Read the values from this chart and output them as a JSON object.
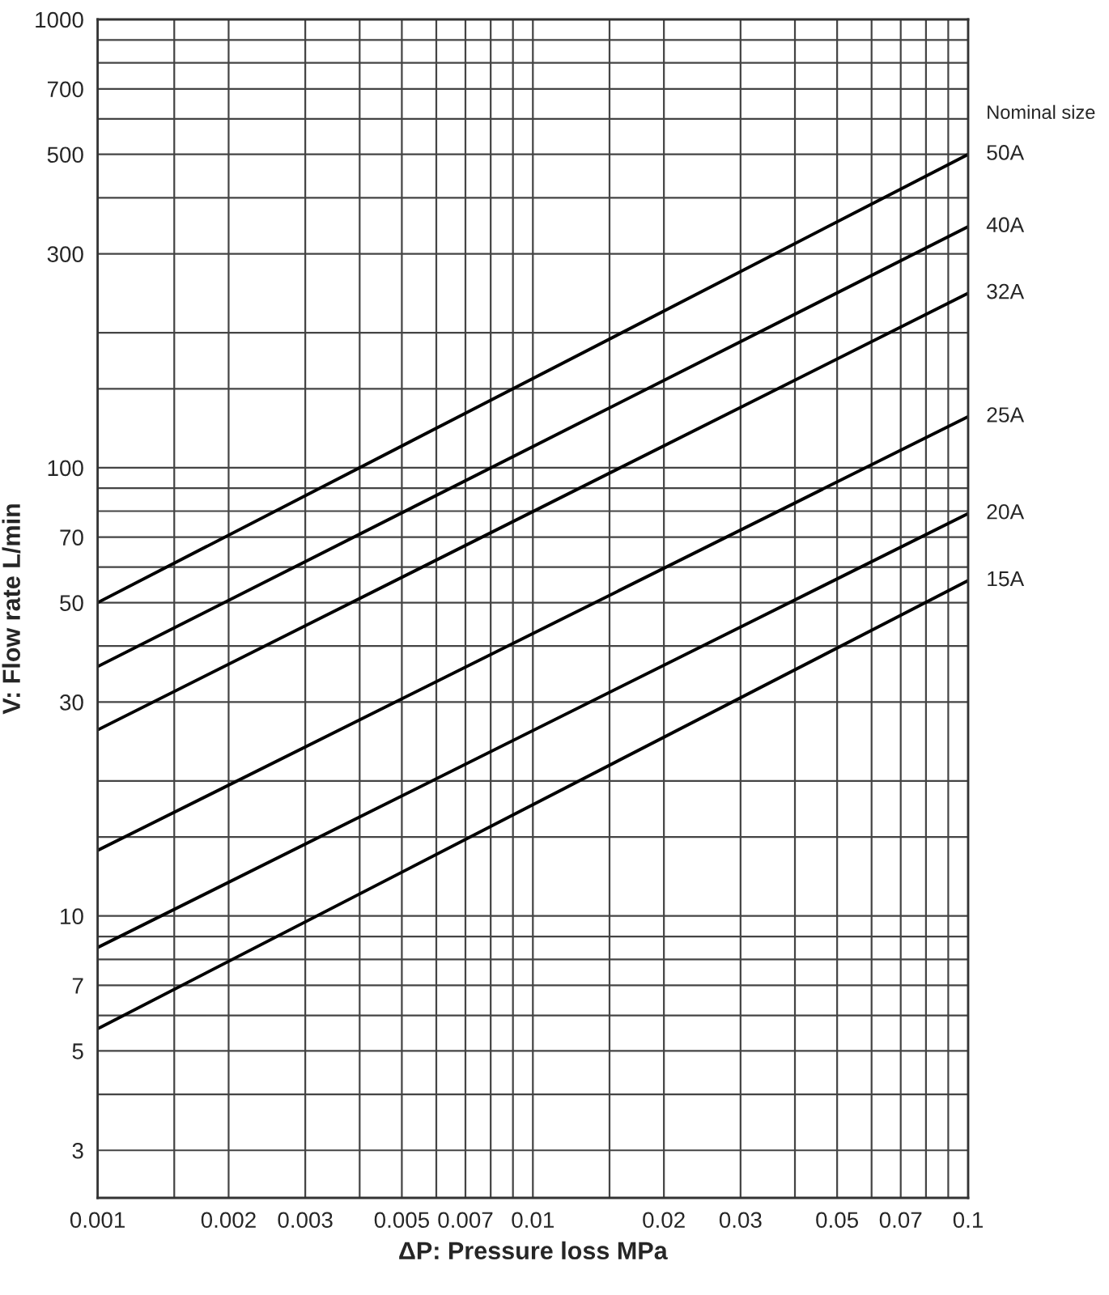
{
  "chart_data": {
    "type": "line",
    "xlabel": "ΔP: Pressure loss MPa",
    "ylabel": "V: Flow rate L/min",
    "legend_title": "Nominal size",
    "log": "xy",
    "grid": true,
    "legend": false,
    "marker": "none",
    "line_style": "solid",
    "xlim": [
      0.001,
      0.1
    ],
    "ylim": [
      2.35,
      1000
    ],
    "xticks": [
      0.001,
      {
        "value": 0.0015,
        "label": null
      },
      0.002,
      0.003,
      {
        "value": 0.004,
        "label": null
      },
      0.005,
      {
        "value": 0.006,
        "label": null
      },
      0.007,
      {
        "value": 0.008,
        "label": null
      },
      {
        "value": 0.009,
        "label": null
      },
      0.01,
      {
        "value": 0.015,
        "label": null
      },
      0.02,
      0.03,
      {
        "value": 0.04,
        "label": null
      },
      0.05,
      {
        "value": 0.06,
        "label": null
      },
      0.07,
      {
        "value": 0.08,
        "label": null
      },
      {
        "value": 0.09,
        "label": null
      },
      0.1
    ],
    "yticks": [
      3,
      {
        "value": 4,
        "label": null
      },
      5,
      {
        "value": 6,
        "label": null
      },
      7,
      {
        "value": 8,
        "label": null
      },
      {
        "value": 9,
        "label": null
      },
      10,
      {
        "value": 15,
        "label": null
      },
      {
        "value": 20,
        "label": null
      },
      30,
      {
        "value": 40,
        "label": null
      },
      50,
      {
        "value": 60,
        "label": null
      },
      70,
      {
        "value": 80,
        "label": null
      },
      {
        "value": 90,
        "label": null
      },
      100,
      {
        "value": 150,
        "label": null
      },
      {
        "value": 200,
        "label": null
      },
      300,
      {
        "value": 400,
        "label": null
      },
      500,
      {
        "value": 600,
        "label": null
      },
      700,
      {
        "value": 800,
        "label": null
      },
      {
        "value": 900,
        "label": null
      },
      1000
    ],
    "x": [
      0.001,
      0.1
    ],
    "series": [
      {
        "name": "50A",
        "color": "#000000",
        "values": [
          50,
          500
        ]
      },
      {
        "name": "40A",
        "color": "#000000",
        "values": [
          36,
          345
        ]
      },
      {
        "name": "32A",
        "color": "#000000",
        "values": [
          26,
          245
        ]
      },
      {
        "name": "25A",
        "color": "#000000",
        "values": [
          14,
          130
        ]
      },
      {
        "name": "20A",
        "color": "#000000",
        "values": [
          8.5,
          79
        ]
      },
      {
        "name": "15A",
        "color": "#000000",
        "values": [
          5.6,
          56
        ]
      }
    ]
  }
}
